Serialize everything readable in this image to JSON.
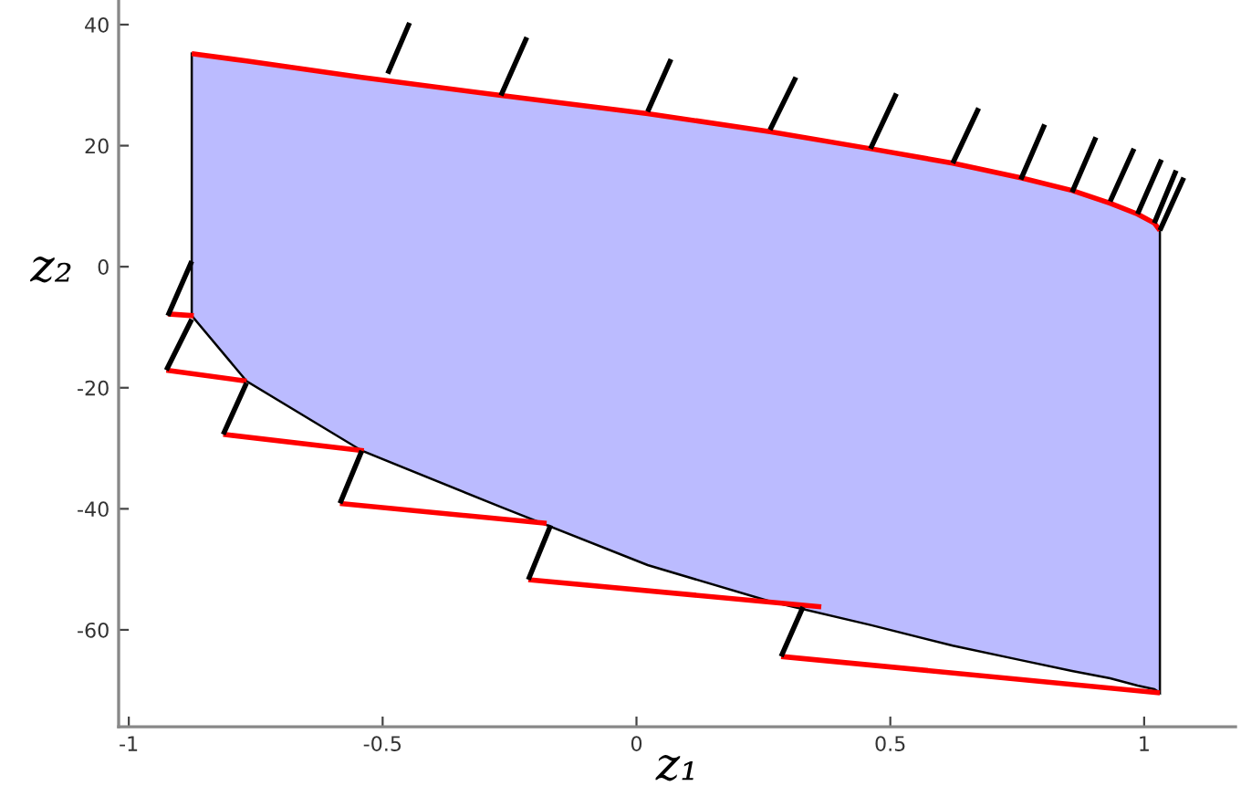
{
  "chart_data": {
    "type": "line",
    "xlabel": "z₁",
    "ylabel": "z₂",
    "xlim": [
      -1.02,
      1.18
    ],
    "ylim": [
      -76,
      44
    ],
    "xticks": [
      {
        "value": -1,
        "label": "-1"
      },
      {
        "value": -0.5,
        "label": "-0.5"
      },
      0,
      0.5,
      1
    ],
    "yticks": [
      {
        "value": -60,
        "label": "-60"
      },
      {
        "value": -40,
        "label": "-40"
      },
      {
        "value": -20,
        "label": "-20"
      },
      0,
      20,
      40
    ],
    "grid": false,
    "legend": false,
    "marker": "none",
    "line_style": "solid",
    "series": [
      {
        "type": "area",
        "color": "#bbbbff",
        "x": [
          -0.876,
          -0.768,
          -0.541,
          -0.267,
          0.022,
          0.263,
          0.461,
          0.623,
          0.757,
          0.858,
          0.933,
          0.987,
          1.02,
          1.031,
          1.031,
          1.02,
          0.987,
          0.933,
          0.858,
          0.757,
          0.623,
          0.461,
          0.263,
          0.022,
          -0.267,
          -0.541,
          -0.768,
          -0.876
        ],
        "values": [
          35.2,
          34.0,
          31.3,
          28.3,
          25.3,
          22.3,
          19.5,
          17.1,
          14.7,
          12.6,
          10.5,
          8.7,
          7.2,
          6.0,
          -70.4,
          -69.8,
          -69.2,
          -68.0,
          -66.8,
          -65.0,
          -62.6,
          -59.2,
          -55.3,
          -49.3,
          -39.7,
          -30.4,
          -18.9,
          -8.1
        ]
      },
      {
        "color": "#ff0000",
        "x": [
          -0.876,
          -0.768,
          -0.541,
          -0.267,
          0.022,
          0.263,
          0.461,
          0.623,
          0.757,
          0.858,
          0.933,
          0.987,
          1.02,
          1.031
        ],
        "values": [
          35.2,
          34.0,
          31.3,
          28.3,
          25.3,
          22.3,
          19.5,
          17.1,
          14.7,
          12.6,
          10.5,
          8.7,
          7.2,
          6.0
        ]
      },
      {
        "color": "#ff0000",
        "x": [
          -0.923,
          -0.872,
          null,
          -0.926,
          -0.768,
          null,
          -0.814,
          -0.537,
          null,
          -0.584,
          -0.177,
          null,
          -0.213,
          0.364,
          null,
          0.285,
          1.031
        ],
        "values": [
          -7.8,
          -8.1,
          null,
          -17.1,
          -18.9,
          null,
          -27.7,
          -30.4,
          null,
          -39.1,
          -42.4,
          null,
          -51.7,
          -56.2,
          null,
          -64.4,
          -70.4
        ]
      },
      {
        "color": "#000000",
        "x": [
          -0.923,
          -0.876,
          null,
          -0.926,
          -0.876,
          null,
          -0.814,
          -0.768,
          null,
          -0.584,
          -0.541,
          null,
          -0.213,
          -0.169,
          null,
          0.285,
          0.328,
          null,
          -0.49,
          -0.447,
          null,
          -0.267,
          -0.216,
          null,
          0.022,
          0.068,
          null,
          0.263,
          0.314,
          null,
          0.461,
          0.512,
          null,
          0.623,
          0.674,
          null,
          0.757,
          0.804,
          null,
          0.858,
          0.905,
          null,
          0.933,
          0.98,
          null,
          0.987,
          1.034,
          null,
          1.02,
          1.063,
          null,
          1.031,
          1.078
        ],
        "values": [
          -8.1,
          0.9,
          null,
          -17.1,
          -8.7,
          null,
          -27.7,
          -19.2,
          null,
          -39.1,
          -30.4,
          null,
          -51.7,
          -42.7,
          null,
          -64.4,
          -56.2,
          null,
          31.9,
          40.3,
          null,
          28.3,
          37.9,
          null,
          25.6,
          34.3,
          null,
          22.6,
          31.3,
          null,
          19.5,
          28.6,
          null,
          17.1,
          26.2,
          null,
          14.4,
          23.5,
          null,
          12.3,
          21.4,
          null,
          10.8,
          19.5,
          null,
          8.7,
          17.7,
          null,
          7.2,
          15.9,
          null,
          6.0,
          14.7
        ]
      }
    ]
  }
}
